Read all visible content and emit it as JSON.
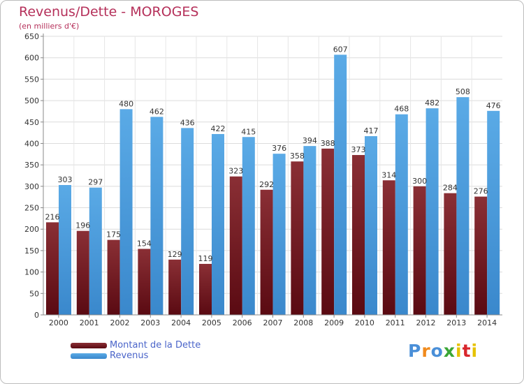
{
  "colors": {
    "dette": "#6e1119",
    "revenus": "#4d9fe0"
  },
  "logo": {
    "text": "Proxiti",
    "letters": [
      "P",
      "r",
      "o",
      "x",
      "i",
      "t",
      "i"
    ],
    "colors": [
      "#4a8fd8",
      "#f08a1c",
      "#4a8fd8",
      "#3aa635",
      "#e6c200",
      "#d8262b",
      "#e6c200"
    ]
  },
  "chart_data": {
    "type": "bar",
    "title": "Revenus/Dette - MOROGES",
    "subtitle": "(en milliers d'€)",
    "xlabel": "",
    "ylabel": "",
    "ylim": [
      0,
      650
    ],
    "yticks": [
      0,
      50,
      100,
      150,
      200,
      250,
      300,
      350,
      400,
      450,
      500,
      550,
      600,
      650
    ],
    "grid": true,
    "categories": [
      "2000",
      "2001",
      "2002",
      "2003",
      "2004",
      "2005",
      "2006",
      "2007",
      "2008",
      "2009",
      "2010",
      "2011",
      "2012",
      "2013",
      "2014"
    ],
    "series": [
      {
        "name": "Montant de la Dette",
        "values": [
          216,
          196,
          175,
          154,
          129,
          119,
          323,
          292,
          358,
          388,
          373,
          314,
          300,
          284,
          276
        ]
      },
      {
        "name": "Revenus",
        "values": [
          303,
          297,
          480,
          462,
          436,
          422,
          415,
          376,
          394,
          607,
          417,
          468,
          482,
          508,
          476
        ]
      }
    ],
    "legend_position": "bottom-left"
  }
}
